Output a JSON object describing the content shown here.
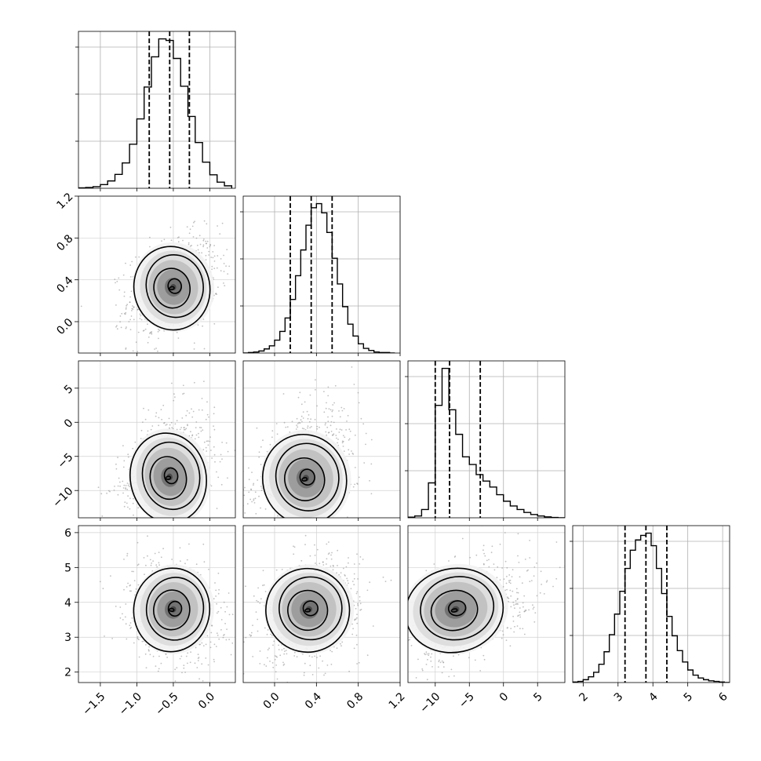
{
  "chart_data": {
    "type": "corner",
    "grid": true,
    "parameters": [
      {
        "range": [
          -1.8,
          0.35
        ],
        "ticks": [
          -1.5,
          -1.0,
          -0.5,
          0.0
        ],
        "tick_labels": [
          "−1.5",
          "−1.0",
          "−0.5",
          "0.0"
        ],
        "quantiles": [
          -0.83,
          -0.55,
          -0.28
        ],
        "mode": -0.55,
        "histogram": {
          "edges": [
            -1.8,
            -1.7,
            -1.6,
            -1.5,
            -1.4,
            -1.3,
            -1.2,
            -1.1,
            -1.0,
            -0.9,
            -0.8,
            -0.7,
            -0.6,
            -0.5,
            -0.4,
            -0.3,
            -0.2,
            -0.1,
            0.0,
            0.1,
            0.2,
            0.3
          ],
          "counts": [
            1,
            2,
            4,
            9,
            18,
            34,
            62,
            108,
            170,
            248,
            322,
            366,
            362,
            318,
            250,
            176,
            112,
            64,
            33,
            15,
            6
          ]
        }
      },
      {
        "range": [
          -0.3,
          1.2
        ],
        "ticks": [
          0.0,
          0.4,
          0.8,
          1.2
        ],
        "tick_labels": [
          "0.0",
          "0.4",
          "0.8",
          "1.2"
        ],
        "quantiles": [
          0.15,
          0.35,
          0.55
        ],
        "mode": 0.35,
        "histogram": {
          "edges": [
            -0.3,
            -0.25,
            -0.2,
            -0.15,
            -0.1,
            -0.05,
            0.0,
            0.05,
            0.1,
            0.15,
            0.2,
            0.25,
            0.3,
            0.35,
            0.4,
            0.45,
            0.5,
            0.55,
            0.6,
            0.65,
            0.7,
            0.75,
            0.8,
            0.85,
            0.9,
            0.95,
            1.0,
            1.05,
            1.1,
            1.15
          ],
          "counts": [
            0,
            1,
            2,
            4,
            8,
            14,
            25,
            42,
            68,
            104,
            150,
            200,
            248,
            282,
            290,
            272,
            234,
            184,
            134,
            90,
            56,
            33,
            18,
            9,
            5,
            2,
            1,
            1,
            0
          ]
        }
      },
      {
        "range": [
          -14.0,
          9.0
        ],
        "ticks": [
          -10,
          -5,
          0,
          5
        ],
        "tick_labels": [
          "−10",
          "−5",
          "0",
          "5"
        ],
        "quantiles": [
          -10.0,
          -7.9,
          -3.4
        ],
        "mode": -9.0,
        "histogram": {
          "edges": [
            -14,
            -13,
            -12,
            -11,
            -10,
            -9,
            -8,
            -7,
            -6,
            -5,
            -4,
            -3,
            -2,
            -1,
            0,
            1,
            2,
            3,
            4,
            5,
            6,
            7,
            8,
            9
          ],
          "counts": [
            2,
            6,
            28,
            118,
            380,
            505,
            365,
            282,
            206,
            180,
            146,
            124,
            104,
            78,
            56,
            40,
            28,
            18,
            11,
            6,
            3,
            1,
            0
          ]
        }
      },
      {
        "range": [
          1.7,
          6.2
        ],
        "ticks": [
          2,
          3,
          4,
          5,
          6
        ],
        "tick_labels": [
          "2",
          "3",
          "4",
          "5",
          "6"
        ],
        "quantiles": [
          3.2,
          3.8,
          4.4
        ],
        "mode": 3.85,
        "histogram": {
          "edges": [
            1.7,
            1.85,
            2.0,
            2.15,
            2.3,
            2.45,
            2.6,
            2.75,
            2.9,
            3.05,
            3.2,
            3.35,
            3.5,
            3.65,
            3.8,
            3.95,
            4.1,
            4.25,
            4.4,
            4.55,
            4.7,
            4.85,
            5.0,
            5.15,
            5.3,
            5.45,
            5.6,
            5.75,
            5.9,
            6.05,
            6.2
          ],
          "counts": [
            1,
            2,
            5,
            10,
            18,
            32,
            54,
            84,
            120,
            160,
            200,
            232,
            250,
            258,
            262,
            240,
            200,
            156,
            116,
            82,
            56,
            36,
            22,
            13,
            8,
            5,
            3,
            2,
            1,
            0
          ]
        }
      }
    ],
    "pairs": [
      {
        "x": 0,
        "y": 1,
        "center": [
          -0.5,
          0.33
        ],
        "spread": [
          0.26,
          0.2
        ],
        "rho": 0.3
      },
      {
        "x": 0,
        "y": 2,
        "center": [
          -0.55,
          -8.0
        ],
        "spread": [
          0.26,
          3.3
        ],
        "rho": 0.3
      },
      {
        "x": 0,
        "y": 3,
        "center": [
          -0.5,
          3.8
        ],
        "spread": [
          0.26,
          0.6
        ],
        "rho": -0.2
      },
      {
        "x": 1,
        "y": 2,
        "center": [
          0.3,
          -8.2
        ],
        "spread": [
          0.2,
          3.3
        ],
        "rho": 0.35
      },
      {
        "x": 1,
        "y": 3,
        "center": [
          0.33,
          3.8
        ],
        "spread": [
          0.2,
          0.6
        ],
        "rho": 0.25
      },
      {
        "x": 2,
        "y": 3,
        "center": [
          -7.0,
          3.8
        ],
        "spread": [
          3.6,
          0.6
        ],
        "rho": 0.35
      }
    ]
  }
}
